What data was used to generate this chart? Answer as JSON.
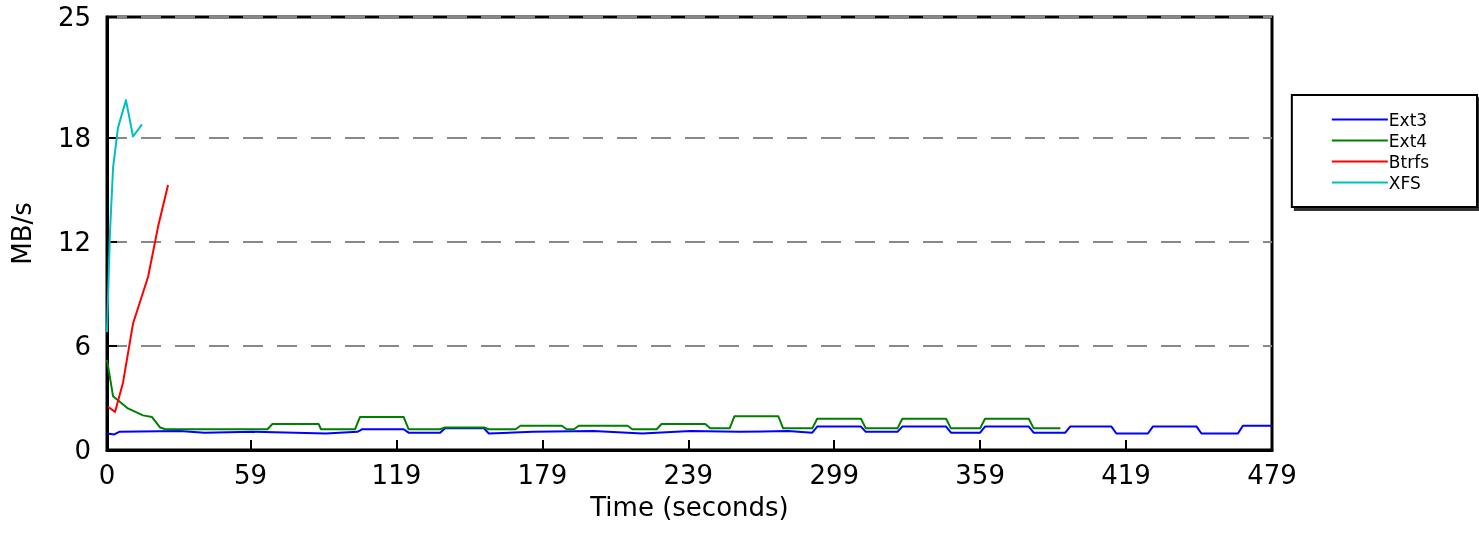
{
  "chart_data": {
    "type": "line",
    "xlabel": "Time (seconds)",
    "ylabel": "MB/s",
    "xlim": [
      0,
      479
    ],
    "xticks": [
      0,
      59,
      119,
      179,
      239,
      299,
      359,
      419,
      479
    ],
    "ylim": [
      0,
      25
    ],
    "yticks": [
      0,
      6,
      12,
      18,
      25
    ],
    "grid": "y",
    "legend": "right",
    "series": [
      {
        "name": "Ext3",
        "color": "#0000ff",
        "x": [
          0,
          3,
          5,
          30,
          40,
          60,
          90,
          103,
          105,
          122,
          124,
          137,
          139,
          155,
          157,
          175,
          200,
          220,
          240,
          260,
          280,
          290,
          292,
          310,
          312,
          325,
          327,
          345,
          347,
          359,
          361,
          379,
          381,
          394,
          396,
          413,
          415,
          428,
          430,
          448,
          450,
          465,
          467,
          479
        ],
        "values": [
          0.95,
          0.9,
          1.05,
          1.1,
          1.0,
          1.05,
          0.95,
          1.05,
          1.2,
          1.2,
          1.0,
          1.0,
          1.25,
          1.25,
          0.95,
          1.05,
          1.1,
          0.95,
          1.1,
          1.05,
          1.1,
          1.0,
          1.35,
          1.35,
          1.05,
          1.05,
          1.35,
          1.35,
          1.0,
          1.0,
          1.35,
          1.35,
          1.0,
          1.0,
          1.35,
          1.35,
          0.95,
          0.95,
          1.35,
          1.35,
          0.95,
          0.95,
          1.4,
          1.4
        ]
      },
      {
        "name": "Ext4",
        "color": "#008000",
        "x": [
          0,
          2.5,
          8.6,
          14.8,
          18.5,
          21.8,
          24,
          66,
          68,
          87,
          88,
          102,
          104,
          122,
          124,
          137,
          139,
          155,
          157,
          168,
          170,
          187,
          189,
          192,
          194,
          214,
          216,
          226,
          228,
          246,
          248,
          256,
          258,
          276,
          278,
          290,
          292,
          310,
          312,
          325,
          327,
          345,
          347,
          359,
          361,
          379,
          381,
          392
        ],
        "values": [
          5.2,
          3.1,
          2.4,
          2.0,
          1.9,
          1.3,
          1.2,
          1.2,
          1.5,
          1.5,
          1.2,
          1.2,
          1.9,
          1.9,
          1.2,
          1.2,
          1.3,
          1.3,
          1.2,
          1.2,
          1.4,
          1.4,
          1.2,
          1.2,
          1.4,
          1.4,
          1.2,
          1.2,
          1.5,
          1.5,
          1.25,
          1.25,
          1.95,
          1.95,
          1.25,
          1.25,
          1.8,
          1.8,
          1.25,
          1.25,
          1.8,
          1.8,
          1.25,
          1.25,
          1.8,
          1.8,
          1.25,
          1.25
        ]
      },
      {
        "name": "Btrfs",
        "color": "#ff0000",
        "x": [
          0.4,
          3.3,
          6.6,
          10.7,
          16.9,
          21,
          25.1
        ],
        "values": [
          2.5,
          2.2,
          3.9,
          7.3,
          10.0,
          12.9,
          15.3
        ]
      },
      {
        "name": "XFS",
        "color": "#00bfbf",
        "x": [
          0,
          1.2,
          2.5,
          4.5,
          7.8,
          10.7,
          14.4
        ],
        "values": [
          6.8,
          12.5,
          16.3,
          18.6,
          20.2,
          18.1,
          18.8
        ]
      }
    ]
  }
}
